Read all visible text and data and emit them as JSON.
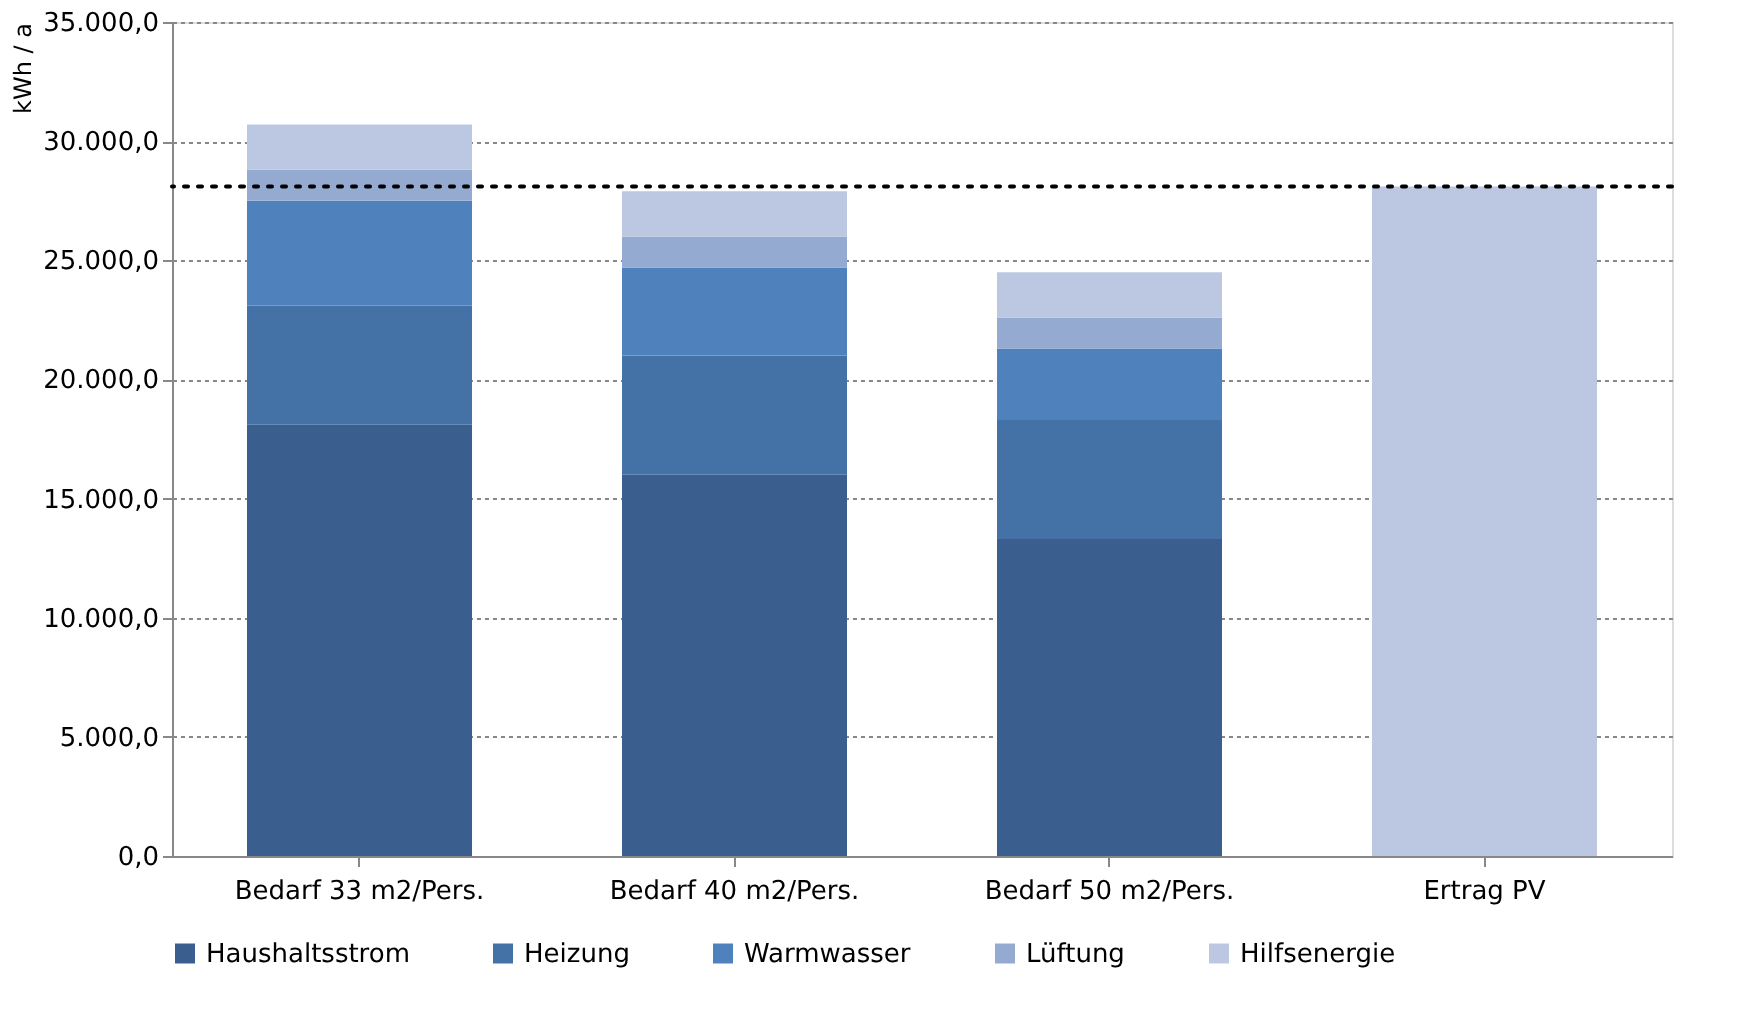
{
  "chart_data": {
    "type": "bar",
    "stacked": true,
    "ylabel": "kWh / a",
    "categories": [
      "Bedarf 33 m2/Pers.",
      "Bedarf 40 m2/Pers.",
      "Bedarf 50 m2/Pers.",
      "Ertrag PV"
    ],
    "series": [
      {
        "name": "Haushaltsstrom",
        "color": "#3a5f8e",
        "values": [
          18100,
          16000,
          13300,
          null
        ]
      },
      {
        "name": "Heizung",
        "color": "#4472a6",
        "values": [
          5000,
          5000,
          5000,
          null
        ]
      },
      {
        "name": "Warmwasser",
        "color": "#4f81bd",
        "values": [
          4400,
          3700,
          3000,
          null
        ]
      },
      {
        "name": "Lüftung",
        "color": "#95aad0",
        "values": [
          1300,
          1300,
          1300,
          null
        ]
      },
      {
        "name": "Hilfsenergie",
        "color": "#bcc8e1",
        "values": [
          1900,
          1900,
          1900,
          28100
        ]
      }
    ],
    "ylim": [
      0,
      35000
    ],
    "yticks": [
      {
        "value": 0,
        "label": "0,0"
      },
      {
        "value": 5000,
        "label": "5.000,0"
      },
      {
        "value": 10000,
        "label": "10.000,0"
      },
      {
        "value": 15000,
        "label": "15.000,0"
      },
      {
        "value": 20000,
        "label": "20.000,0"
      },
      {
        "value": 25000,
        "label": "25.000,0"
      },
      {
        "value": 30000,
        "label": "30.000,0"
      },
      {
        "value": 35000,
        "label": "35.000,0"
      }
    ],
    "ref_lines": [
      {
        "axis": "y",
        "value": 28100,
        "color": "#000000",
        "line_style": "dotted"
      }
    ],
    "grid": "y",
    "legend": "bottom"
  }
}
